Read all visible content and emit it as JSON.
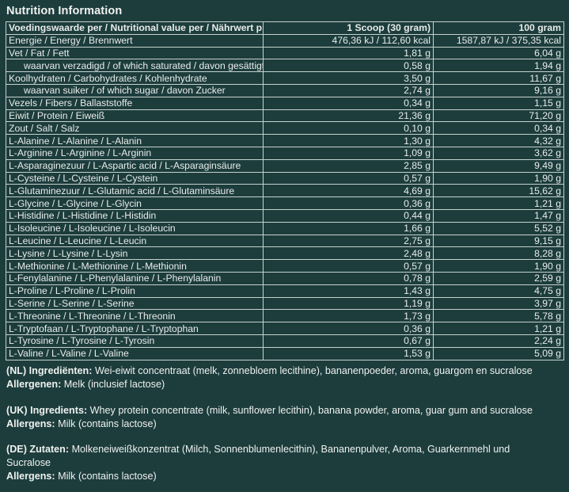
{
  "title": "Nutrition Information",
  "header": {
    "col1": "Voedingswaarde per / Nutritional value per / Nährwert pro",
    "col2": "1 Scoop (30 gram)",
    "col3": "100 gram"
  },
  "rows": [
    {
      "label": "Energie / Energy / Brennwert",
      "per_serving": "476,36 kJ / 112,60 kcal",
      "per_100g": "1587,87 kJ / 375,35 kcal",
      "indent": false
    },
    {
      "label": "Vet / Fat / Fett",
      "per_serving": "1,81 g",
      "per_100g": "6,04 g",
      "indent": false
    },
    {
      "label": "waarvan verzadigd / of which saturated / davon gesättigt",
      "per_serving": "0,58 g",
      "per_100g": "1,94 g",
      "indent": true
    },
    {
      "label": "Koolhydraten / Carbohydrates / Kohlenhydrate",
      "per_serving": "3,50 g",
      "per_100g": "11,67 g",
      "indent": false
    },
    {
      "label": "waarvan suiker / of which sugar / davon Zucker",
      "per_serving": "2,74 g",
      "per_100g": "9,16 g",
      "indent": true
    },
    {
      "label": "Vezels / Fibers / Ballaststoffe",
      "per_serving": "0,34 g",
      "per_100g": "1,15 g",
      "indent": false
    },
    {
      "label": "Eiwit / Protein / Eiweiß",
      "per_serving": "21,36 g",
      "per_100g": "71,20 g",
      "indent": false
    },
    {
      "label": "Zout / Salt / Salz",
      "per_serving": "0,10 g",
      "per_100g": "0,34 g",
      "indent": false
    },
    {
      "label": "L-Alanine / L-Alanine / L-Alanin",
      "per_serving": "1,30 g",
      "per_100g": "4,32 g",
      "indent": false
    },
    {
      "label": "L-Arginine / L-Arginine / L-Arginin",
      "per_serving": "1,09 g",
      "per_100g": "3,62 g",
      "indent": false
    },
    {
      "label": "L-Asparaginezuur / L-Aspartic acid / L-Asparaginsäure",
      "per_serving": "2,85 g",
      "per_100g": "9,49 g",
      "indent": false
    },
    {
      "label": "L-Cysteine / L-Cysteine / L-Cystein",
      "per_serving": "0,57 g",
      "per_100g": "1,90 g",
      "indent": false
    },
    {
      "label": "L-Glutaminezuur / L-Glutamic acid / L-Glutaminsäure",
      "per_serving": "4,69 g",
      "per_100g": "15,62 g",
      "indent": false
    },
    {
      "label": "L-Glycine / L-Glycine / L-Glycin",
      "per_serving": "0,36 g",
      "per_100g": "1,21 g",
      "indent": false
    },
    {
      "label": "L-Histidine / L-Histidine / L-Histidin",
      "per_serving": "0,44 g",
      "per_100g": "1,47 g",
      "indent": false
    },
    {
      "label": "L-Isoleucine / L-Isoleucine / L-Isoleucin",
      "per_serving": "1,66 g",
      "per_100g": "5,52 g",
      "indent": false
    },
    {
      "label": "L-Leucine / L-Leucine / L-Leucin",
      "per_serving": "2,75 g",
      "per_100g": "9,15 g",
      "indent": false
    },
    {
      "label": "L-Lysine / L-Lysine / L-Lysin",
      "per_serving": "2,48 g",
      "per_100g": "8,28 g",
      "indent": false
    },
    {
      "label": "L-Methionine / L-Methionine / L-Methionin",
      "per_serving": "0,57 g",
      "per_100g": "1,90 g",
      "indent": false
    },
    {
      "label": "L-Fenylalanine / L-Phenylalanine / L-Phenylalanin",
      "per_serving": "0,78 g",
      "per_100g": "2,59 g",
      "indent": false
    },
    {
      "label": "L-Proline / L-Proline / L-Prolin",
      "per_serving": "1,43 g",
      "per_100g": "4,75 g",
      "indent": false
    },
    {
      "label": "L-Serine / L-Serine / L-Serine",
      "per_serving": "1,19 g",
      "per_100g": "3,97 g",
      "indent": false
    },
    {
      "label": "L-Threonine / L-Threonine / L-Threonin",
      "per_serving": "1,73 g",
      "per_100g": "5,78 g",
      "indent": false
    },
    {
      "label": "L-Tryptofaan / L-Tryptophane / L-Tryptophan",
      "per_serving": "0,36 g",
      "per_100g": "1,21 g",
      "indent": false
    },
    {
      "label": "L-Tyrosine / L-Tyrosine / L-Tyrosin",
      "per_serving": "0,67 g",
      "per_100g": "2,24 g",
      "indent": false
    },
    {
      "label": "L-Valine / L-Valine / L-Valine",
      "per_serving": "1,53 g",
      "per_100g": "5,09 g",
      "indent": false
    }
  ],
  "ingredients": {
    "nl": {
      "label": "(NL) Ingrediënten:",
      "text": "Wei-eiwit concentraat (melk, zonnebloem lecithine), bananenpoeder, aroma, guargom en sucralose",
      "allergen_label": "Allergenen:",
      "allergen_text": "Melk (inclusief lactose)"
    },
    "uk": {
      "label": "(UK) Ingredients:",
      "text": "Whey protein concentrate (milk, sunflower lecithin), banana powder, aroma, guar gum and sucralose",
      "allergen_label": "Allergens:",
      "allergen_text": "Milk (contains lactose)"
    },
    "de": {
      "label": "(DE) Zutaten:",
      "text": "Molkeneiweißkonzentrat (Milch, Sonnenblumenlecithin), Bananenpulver, Aroma, Guarkernmehl und Sucralose",
      "allergen_label": "Allergens:",
      "allergen_text": "Milk (contains lactose)"
    }
  },
  "colors": {
    "background": "#1d3d3d",
    "text": "#e8ecea",
    "border": "#c7d1cc"
  }
}
